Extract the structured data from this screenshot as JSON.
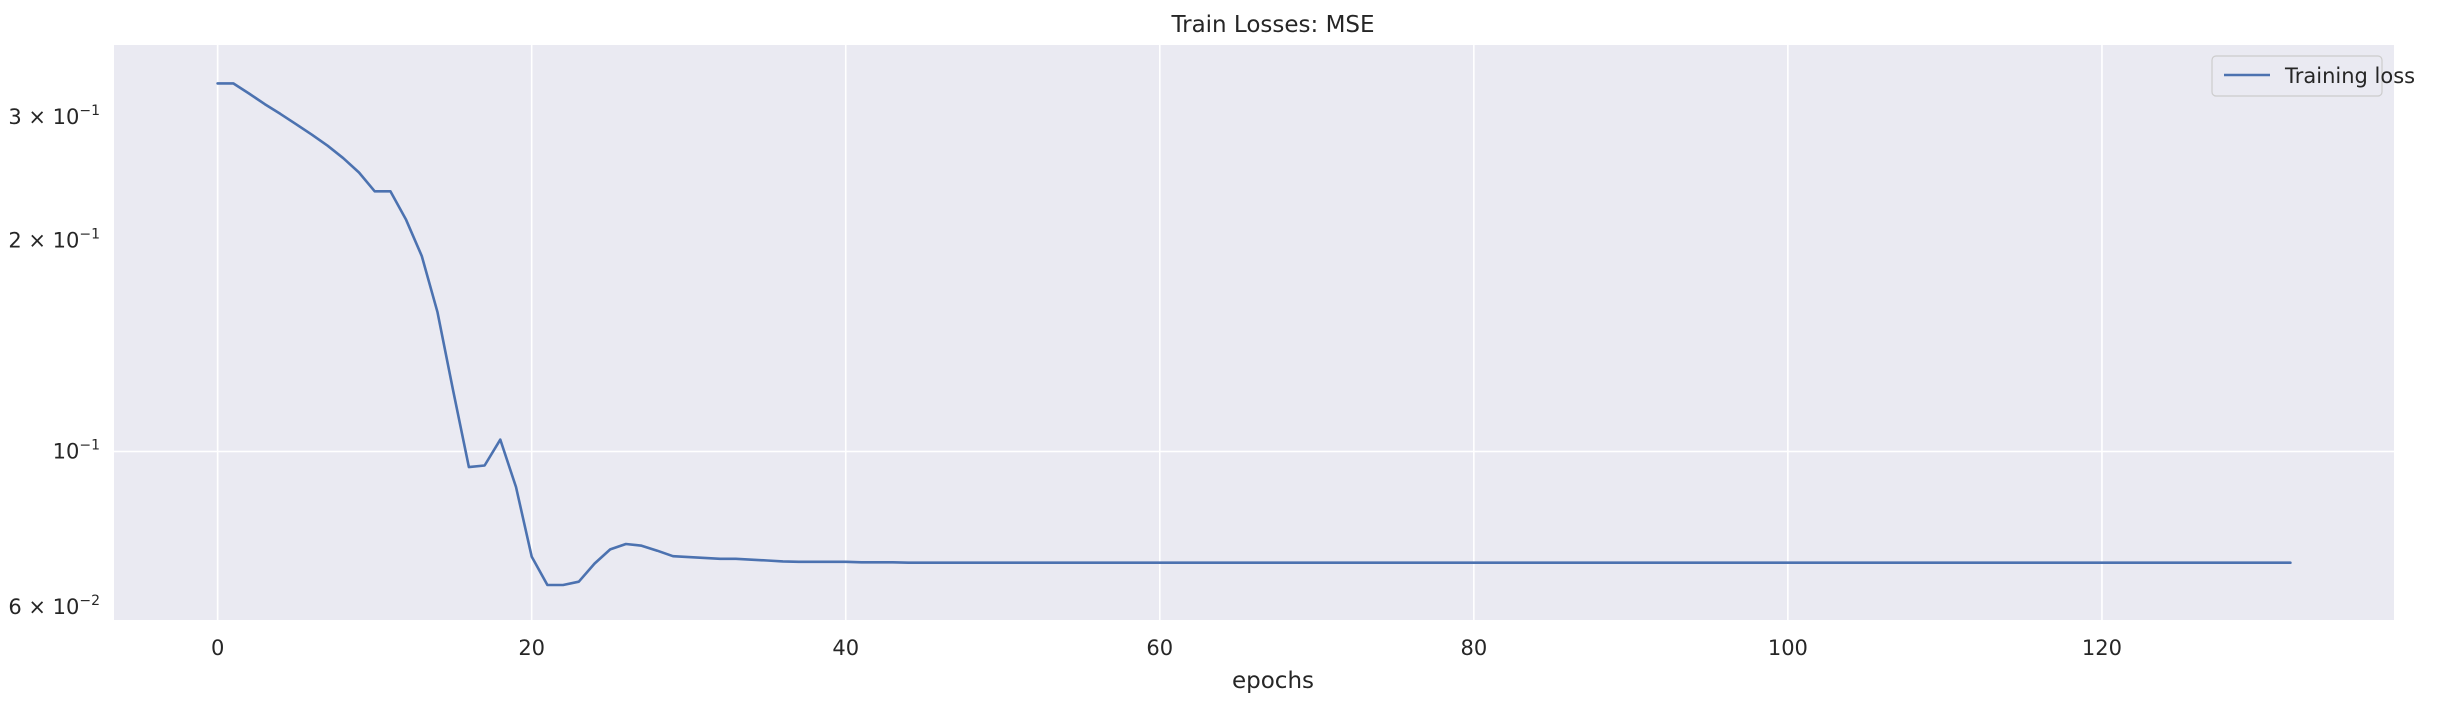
{
  "chart_data": {
    "type": "line",
    "title": "Train Losses:  MSE",
    "xlabel": "epochs",
    "ylabel": "",
    "yscale": "log",
    "xlim": [
      -6.6,
      138.6
    ],
    "ylim": [
      0.0575,
      0.38
    ],
    "grid": true,
    "legend_position": "top-right",
    "background_color": "#eaeaf2",
    "grid_color": "#ffffff",
    "xticks": [
      {
        "value": 0,
        "label": "0"
      },
      {
        "value": 20,
        "label": "20"
      },
      {
        "value": 40,
        "label": "40"
      },
      {
        "value": 60,
        "label": "60"
      },
      {
        "value": 80,
        "label": "80"
      },
      {
        "value": 100,
        "label": "100"
      },
      {
        "value": 120,
        "label": "120"
      }
    ],
    "yticks": [
      {
        "value": 0.06,
        "base": "6 × 10",
        "exp": "−2"
      },
      {
        "value": 0.1,
        "base": "10",
        "exp": "−1"
      },
      {
        "value": 0.2,
        "base": "2 × 10",
        "exp": "−1"
      },
      {
        "value": 0.3,
        "base": "3 × 10",
        "exp": "−1"
      }
    ],
    "series": [
      {
        "name": "Training loss",
        "color": "#4c72b0",
        "x": [
          0,
          1,
          2,
          3,
          4,
          5,
          6,
          7,
          8,
          9,
          10,
          11,
          12,
          13,
          14,
          15,
          16,
          17,
          18,
          19,
          20,
          21,
          22,
          23,
          24,
          25,
          26,
          27,
          28,
          29,
          30,
          31,
          32,
          33,
          34,
          35,
          36,
          37,
          38,
          39,
          40,
          41,
          42,
          43,
          44,
          45,
          50,
          60,
          70,
          80,
          90,
          100,
          110,
          120,
          130,
          132
        ],
        "y": [
          0.335,
          0.335,
          0.324,
          0.313,
          0.303,
          0.293,
          0.283,
          0.273,
          0.262,
          0.25,
          0.235,
          0.235,
          0.214,
          0.19,
          0.158,
          0.122,
          0.095,
          0.0955,
          0.104,
          0.089,
          0.0708,
          0.0645,
          0.0645,
          0.0652,
          0.0692,
          0.0725,
          0.0738,
          0.0734,
          0.0722,
          0.0709,
          0.0707,
          0.0705,
          0.0703,
          0.0703,
          0.0701,
          0.0699,
          0.0697,
          0.0696,
          0.0696,
          0.0696,
          0.0696,
          0.0695,
          0.0695,
          0.0695,
          0.0694,
          0.0694,
          0.0694,
          0.0694,
          0.0694,
          0.0694,
          0.0694,
          0.0694,
          0.0694,
          0.0694,
          0.0694,
          0.0694
        ]
      }
    ]
  }
}
